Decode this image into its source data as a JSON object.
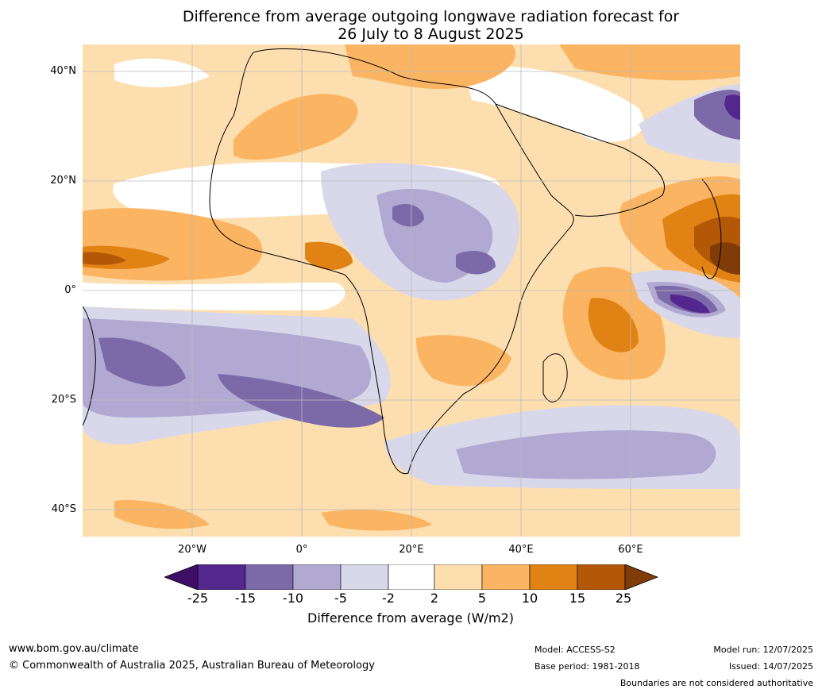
{
  "title_line1": "Difference from average outgoing longwave radiation forecast for",
  "title_line2": "26 July to 8 August 2025",
  "lat_labels": [
    "40°N",
    "20°N",
    "0°",
    "20°S",
    "40°S"
  ],
  "lon_labels": [
    "20°W",
    "0°",
    "20°E",
    "40°E",
    "60°E"
  ],
  "colorbar": {
    "title": "Difference from average (W/m2)",
    "ticks": [
      "-25",
      "-15",
      "-10",
      "-5",
      "-2",
      "2",
      "5",
      "10",
      "15",
      "25"
    ],
    "colors": [
      "#3f0f67",
      "#54278f",
      "#7c6aa8",
      "#b1a9d2",
      "#d8d8ea",
      "#ffffff",
      "#fddeaf",
      "#fbb461",
      "#e08214",
      "#b35806",
      "#7f3b08"
    ]
  },
  "footer": {
    "website": "www.bom.gov.au/climate",
    "copyright": "© Commonwealth of Australia 2025, Australian Bureau of Meteorology",
    "model": "Model: ACCESS-S2",
    "base_period": "Base period: 1981-2018",
    "model_run": "Model run: 12/07/2025",
    "issued": "Issued: 14/07/2025",
    "disclaimer": "Boundaries are not considered authoritative"
  }
}
